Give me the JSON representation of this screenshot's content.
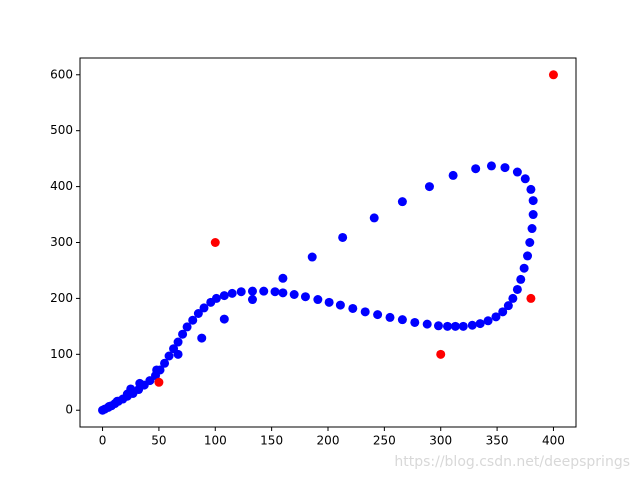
{
  "chart_data": {
    "type": "scatter",
    "series": [
      {
        "color": "#0000ff",
        "x": [
          0,
          2,
          5,
          8,
          11,
          14,
          18,
          22,
          25,
          27,
          32,
          37,
          42,
          47,
          51,
          55,
          59,
          63,
          67,
          71,
          75,
          80,
          85,
          90,
          96,
          101,
          108,
          115,
          123,
          133,
          143,
          153,
          160,
          170,
          180,
          191,
          201,
          211,
          222,
          233,
          244,
          255,
          266,
          277,
          288,
          298,
          306,
          313,
          320,
          328,
          335,
          342,
          349,
          355,
          360,
          364,
          368,
          371,
          374,
          377,
          379,
          381,
          382,
          382,
          380,
          375,
          368,
          357,
          345,
          331,
          311,
          290,
          266,
          241,
          213,
          186,
          160,
          133,
          108,
          88,
          67,
          48,
          33,
          22,
          13,
          6
        ],
        "values": [
          0,
          2,
          5,
          8,
          12,
          16,
          20,
          25,
          38,
          30,
          37,
          45,
          53,
          62,
          72,
          84,
          97,
          110,
          122,
          136,
          149,
          161,
          173,
          183,
          193,
          200,
          205,
          209,
          212,
          213,
          213,
          212,
          210,
          207,
          203,
          198,
          193,
          188,
          182,
          176,
          171,
          166,
          162,
          157,
          154,
          151,
          150,
          150,
          150,
          152,
          155,
          160,
          167,
          176,
          187,
          200,
          216,
          234,
          254,
          276,
          300,
          325,
          350,
          375,
          395,
          414,
          426,
          434,
          437,
          432,
          420,
          400,
          373,
          344,
          309,
          274,
          236,
          198,
          163,
          129,
          100,
          72,
          48,
          29,
          16,
          7
        ]
      },
      {
        "color": "#ff0000",
        "x": [
          50,
          100,
          300,
          380,
          400
        ],
        "values": [
          50,
          300,
          100,
          200,
          600
        ]
      }
    ],
    "xlim": [
      -20,
      420
    ],
    "xticks": [
      0,
      50,
      100,
      150,
      200,
      250,
      300,
      350,
      400
    ],
    "ylim": [
      -30,
      630
    ],
    "yticks": [
      0,
      100,
      200,
      300,
      400,
      500,
      600
    ],
    "grid": false
  },
  "watermark": "https://blog.csdn.net/deepsprings"
}
